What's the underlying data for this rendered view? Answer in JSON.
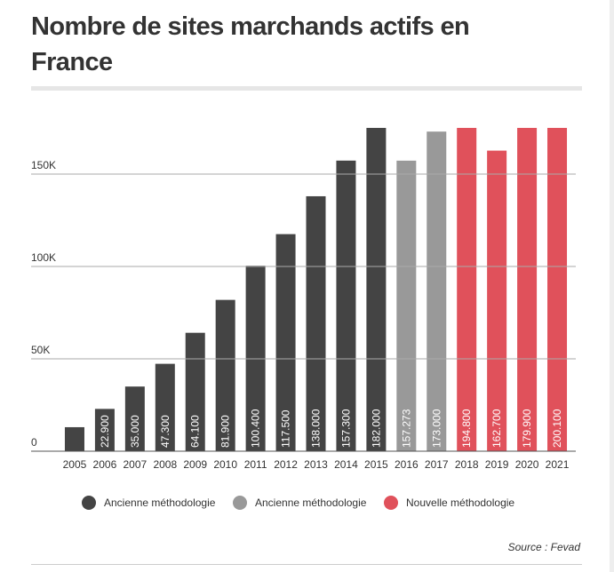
{
  "chart_data": {
    "type": "bar",
    "title": "Nombre de sites marchands actifs en France",
    "source": "Source : Fevad",
    "categories": [
      "2005",
      "2006",
      "2007",
      "2008",
      "2009",
      "2010",
      "2011",
      "2012",
      "2013",
      "2014",
      "2015",
      "2016",
      "2017",
      "2018",
      "2019",
      "2020",
      "2021"
    ],
    "series": [
      {
        "name": "Ancienne méthodologie",
        "color": "#444444",
        "values": [
          13000,
          22900,
          35000,
          47300,
          64100,
          81900,
          100400,
          117500,
          138000,
          157300,
          182000,
          null,
          null,
          null,
          null,
          null,
          null
        ],
        "value_labels": [
          null,
          "22.900",
          "35.000",
          "47.300",
          "64.100",
          "81.900",
          "100.400",
          "117.500",
          "138.000",
          "157.300",
          "182.000",
          null,
          null,
          null,
          null,
          null,
          null
        ]
      },
      {
        "name": "Ancienne méthodologie",
        "color": "#999999",
        "values": [
          null,
          null,
          null,
          null,
          null,
          null,
          null,
          null,
          null,
          null,
          null,
          157273,
          173000,
          null,
          null,
          null,
          null
        ],
        "value_labels": [
          null,
          null,
          null,
          null,
          null,
          null,
          null,
          null,
          null,
          null,
          null,
          "157.273",
          "173.000",
          null,
          null,
          null,
          null
        ]
      },
      {
        "name": "Nouvelle méthodologie",
        "color": "#e0515b",
        "values": [
          null,
          null,
          null,
          null,
          null,
          null,
          null,
          null,
          null,
          null,
          null,
          null,
          null,
          194800,
          162700,
          179900,
          200100
        ],
        "value_labels": [
          null,
          null,
          null,
          null,
          null,
          null,
          null,
          null,
          null,
          null,
          null,
          null,
          null,
          "194.800",
          "162.700",
          "179.900",
          "200.100"
        ]
      }
    ],
    "ylim": [
      0,
      175000
    ],
    "yticks": [
      0,
      {
        "value": 50000,
        "label": "50K"
      },
      {
        "value": 100000,
        "label": "100K"
      },
      {
        "value": 150000,
        "label": "150K"
      }
    ],
    "grid": true,
    "legend": "bottom"
  }
}
